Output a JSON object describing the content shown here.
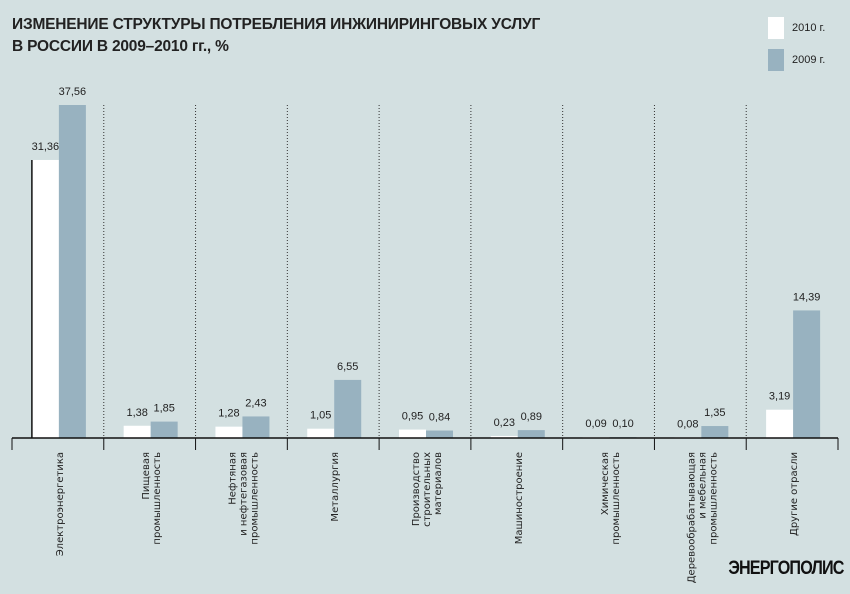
{
  "chart_data": {
    "type": "bar",
    "title": "ИЗМЕНЕНИЕ СТРУКТУРЫ ПОТРЕБЛЕНИЯ ИНЖИНИРИНГОВЫХ УСЛУГ В РОССИИ В 2009–2010 гг., %",
    "title_lines": [
      "ИЗМЕНЕНИЕ СТРУКТУРЫ ПОТРЕБЛЕНИЯ ИНЖИНИРИНГОВЫХ УСЛУГ",
      "В РОССИИ В 2009–2010 гг., %"
    ],
    "categories": [
      [
        "Электроэнергетика"
      ],
      [
        "Пищевая",
        "промышленность"
      ],
      [
        "Нефтяная",
        "и нефтегазовая",
        "промышленность"
      ],
      [
        "Металлургия"
      ],
      [
        "Производство",
        "строительных",
        "материалов"
      ],
      [
        "Машиностроение"
      ],
      [
        "Химическая",
        "промышленность"
      ],
      [
        "Деревообрабатывающая",
        "и мебельная",
        "промышленность"
      ],
      [
        "Другие отрасли"
      ]
    ],
    "series": [
      {
        "name": "2010 г.",
        "color": "#ffffff",
        "values": [
          31.36,
          1.38,
          1.28,
          1.05,
          0.95,
          0.23,
          0.09,
          0.08,
          3.19
        ],
        "labels": [
          "31,36",
          "1,38",
          "1,28",
          "1,05",
          "0,95",
          "0,23",
          "0,09",
          "0,08",
          "3,19"
        ]
      },
      {
        "name": "2009 г.",
        "color": "#98b2c0",
        "values": [
          37.56,
          1.85,
          2.43,
          6.55,
          0.84,
          0.89,
          0.1,
          1.35,
          14.39
        ],
        "labels": [
          "37,56",
          "1,85",
          "2,43",
          "6,55",
          "0,84",
          "0,89",
          "0,10",
          "1,35",
          "14,39"
        ]
      }
    ],
    "ylim": [
      0,
      37.56
    ],
    "legend": "top-right",
    "grid": false
  },
  "logo": "ЭНЕРГОПОЛИС"
}
